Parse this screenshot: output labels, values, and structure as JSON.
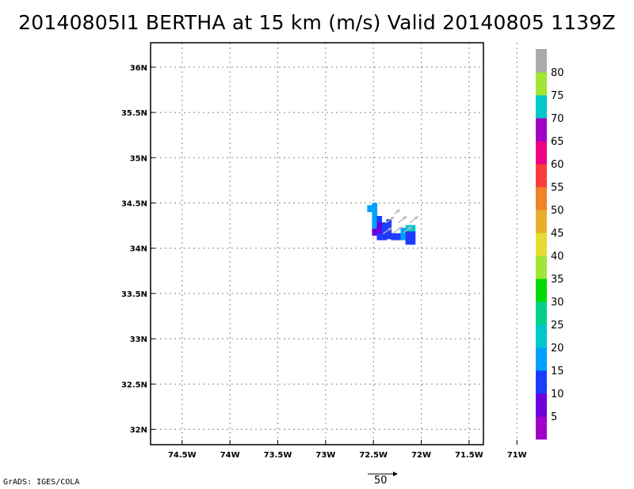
{
  "title": "20140805I1 BERTHA at 15 km (m/s) Valid 20140805 1139Z",
  "credit": "GrADS: IGES/COLA",
  "reference_vector": {
    "label": "50",
    "magnitude": 50
  },
  "chart_data": {
    "type": "heatmap",
    "title": "20140805I1 BERTHA at 15 km (m/s) Valid 20140805 1139Z",
    "xlabel": "",
    "ylabel": "",
    "units": "m/s",
    "xlim": [
      -74.83,
      -71.35
    ],
    "ylim": [
      31.83,
      36.27
    ],
    "grid": true,
    "x_ticks": [
      {
        "value": -74.5,
        "label": "74.5W"
      },
      {
        "value": -74.0,
        "label": "74W"
      },
      {
        "value": -73.5,
        "label": "73.5W"
      },
      {
        "value": -73.0,
        "label": "73W"
      },
      {
        "value": -72.5,
        "label": "72.5W"
      },
      {
        "value": -72.0,
        "label": "72W"
      },
      {
        "value": -71.5,
        "label": "71.5W"
      },
      {
        "value": -71.0,
        "label": "71W"
      }
    ],
    "y_ticks": [
      {
        "value": 32.0,
        "label": "32N"
      },
      {
        "value": 32.5,
        "label": "32.5N"
      },
      {
        "value": 33.0,
        "label": "33N"
      },
      {
        "value": 33.5,
        "label": "33.5N"
      },
      {
        "value": 34.0,
        "label": "34N"
      },
      {
        "value": 34.5,
        "label": "34.5N"
      },
      {
        "value": 35.0,
        "label": "35N"
      },
      {
        "value": 35.5,
        "label": "35.5N"
      },
      {
        "value": 36.0,
        "label": "36N"
      }
    ],
    "colorbar": {
      "labels": [
        "5",
        "10",
        "15",
        "20",
        "25",
        "30",
        "35",
        "40",
        "45",
        "50",
        "55",
        "60",
        "65",
        "70",
        "75",
        "80"
      ],
      "colors": [
        "#a000c8",
        "#6e00dc",
        "#1e3cff",
        "#00a0ff",
        "#00c8c8",
        "#00d28c",
        "#00dc00",
        "#a0e632",
        "#e6dc32",
        "#e6af2d",
        "#f08228",
        "#fa3c3c",
        "#f00082",
        "#a000c8",
        "#00c8c8",
        "#a0e632",
        "#aaaaaa"
      ]
    },
    "cells": [
      {
        "lon": -72.54,
        "lat": 34.44,
        "value": 17
      },
      {
        "lon": -72.49,
        "lat": 34.465,
        "value": 17
      },
      {
        "lon": -72.49,
        "lat": 34.39,
        "value": 17
      },
      {
        "lon": -72.49,
        "lat": 34.32,
        "value": 17
      },
      {
        "lon": -72.49,
        "lat": 34.25,
        "value": 16
      },
      {
        "lon": -72.49,
        "lat": 34.18,
        "value": 8
      },
      {
        "lon": -72.44,
        "lat": 34.32,
        "value": 12
      },
      {
        "lon": -72.44,
        "lat": 34.25,
        "value": 8
      },
      {
        "lon": -72.44,
        "lat": 34.18,
        "value": 6
      },
      {
        "lon": -72.44,
        "lat": 34.13,
        "value": 12
      },
      {
        "lon": -72.39,
        "lat": 34.25,
        "value": 11
      },
      {
        "lon": -72.39,
        "lat": 34.18,
        "value": 11
      },
      {
        "lon": -72.39,
        "lat": 34.13,
        "value": 11
      },
      {
        "lon": -72.34,
        "lat": 34.285,
        "value": 11
      },
      {
        "lon": -72.34,
        "lat": 34.21,
        "value": 11
      },
      {
        "lon": -72.34,
        "lat": 34.14,
        "value": 11
      },
      {
        "lon": -72.29,
        "lat": 34.13,
        "value": 11
      },
      {
        "lon": -72.24,
        "lat": 34.13,
        "value": 11
      },
      {
        "lon": -72.19,
        "lat": 34.19,
        "value": 16
      },
      {
        "lon": -72.19,
        "lat": 34.13,
        "value": 16
      },
      {
        "lon": -72.14,
        "lat": 34.22,
        "value": 22
      },
      {
        "lon": -72.14,
        "lat": 34.15,
        "value": 12
      },
      {
        "lon": -72.14,
        "lat": 34.08,
        "value": 11
      },
      {
        "lon": -72.09,
        "lat": 34.22,
        "value": 22
      },
      {
        "lon": -72.09,
        "lat": 34.15,
        "value": 11
      },
      {
        "lon": -72.09,
        "lat": 34.08,
        "value": 11
      }
    ],
    "vectors": [
      {
        "lon": -72.4,
        "lat": 34.16,
        "u": 16,
        "v": 11
      },
      {
        "lon": -72.29,
        "lat": 34.17,
        "u": 16,
        "v": 11
      },
      {
        "lon": -72.19,
        "lat": 34.17,
        "u": 16,
        "v": 11
      },
      {
        "lon": -72.37,
        "lat": 34.28,
        "u": 15,
        "v": 11
      },
      {
        "lon": -72.24,
        "lat": 34.28,
        "u": 15,
        "v": 12
      },
      {
        "lon": -72.12,
        "lat": 34.28,
        "u": 15,
        "v": 12
      },
      {
        "lon": -72.28,
        "lat": 34.38,
        "u": 10,
        "v": 8
      }
    ]
  }
}
